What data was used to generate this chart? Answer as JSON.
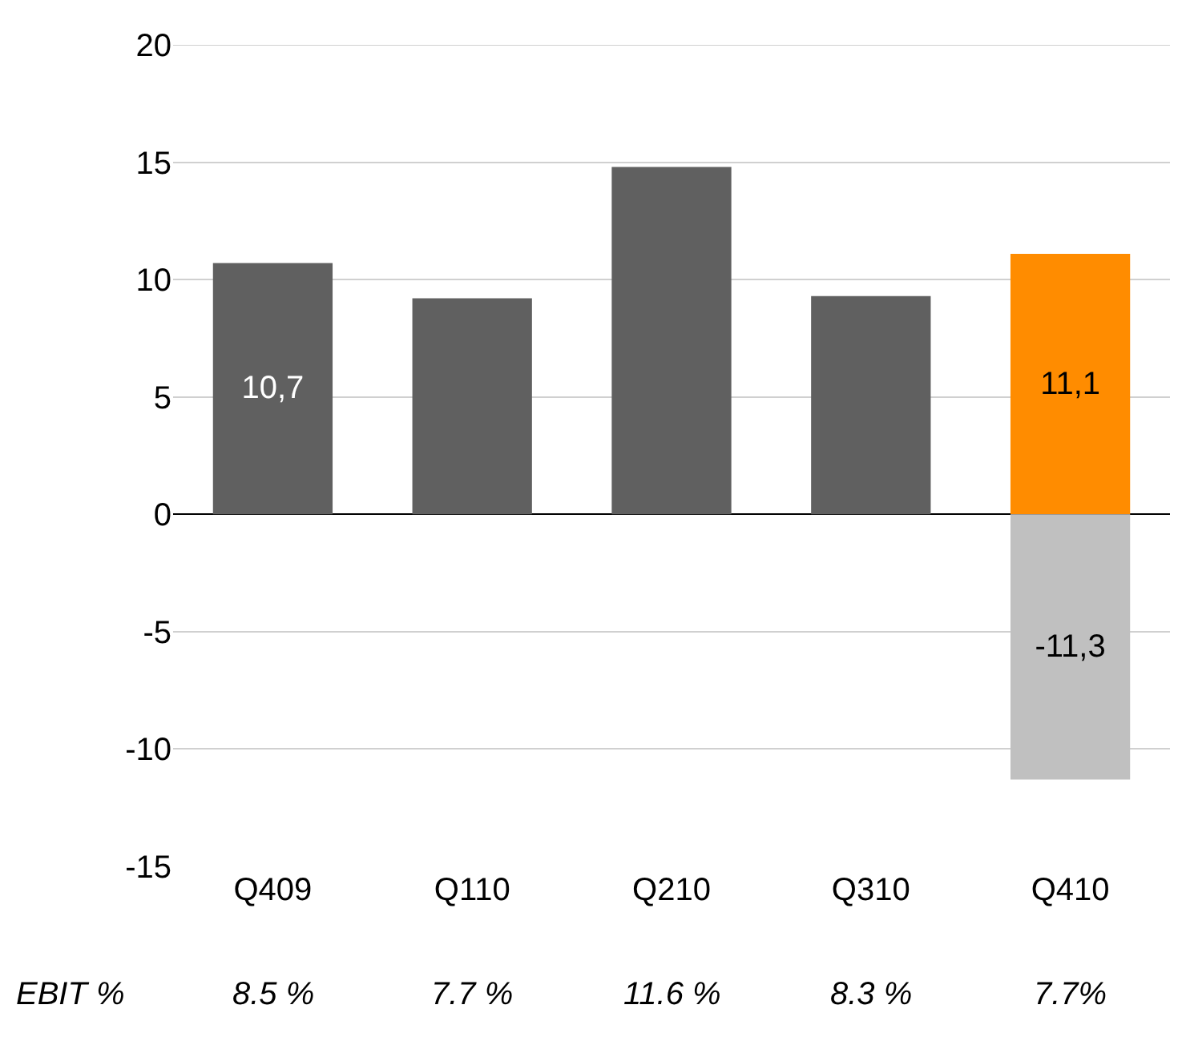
{
  "chart_data": {
    "type": "bar",
    "stacked": true,
    "categories": [
      "Q409",
      "Q110",
      "Q210",
      "Q310",
      "Q410"
    ],
    "series": [
      {
        "colors": [
          "#606060",
          "#606060",
          "#606060",
          "#606060",
          "#ff8c00"
        ],
        "values": [
          10.7,
          9.2,
          14.8,
          9.3,
          11.1
        ],
        "value_labels": [
          "10,7",
          null,
          null,
          null,
          "11,1"
        ]
      },
      {
        "color": "#c0c0c0",
        "values": [
          null,
          null,
          null,
          null,
          -11.3
        ],
        "value_labels": [
          null,
          null,
          null,
          null,
          "-11,3"
        ]
      }
    ],
    "ylim": [
      -15,
      20
    ],
    "yticks": [
      -15,
      -10,
      -5,
      0,
      5,
      10,
      15,
      20
    ],
    "grid": "y",
    "annotations": [
      "EBIT %",
      "8.5 %",
      "7.7 %",
      "11.6 %",
      "8.3 %",
      "7.7%"
    ]
  }
}
